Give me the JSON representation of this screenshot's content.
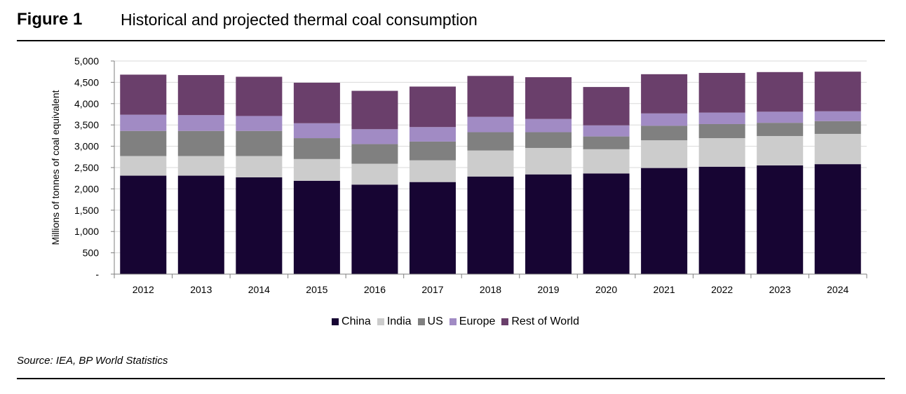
{
  "figure": {
    "number": "Figure 1",
    "title": "Historical and projected thermal coal consumption",
    "source": "Source: IEA, BP World Statistics"
  },
  "chart_data": {
    "type": "bar",
    "stacked": true,
    "categories": [
      "2012",
      "2013",
      "2014",
      "2015",
      "2016",
      "2017",
      "2018",
      "2019",
      "2020",
      "2021",
      "2022",
      "2023",
      "2024"
    ],
    "ylabel": "Millions of tonnes of coal equivalent",
    "ylim": [
      0,
      5000
    ],
    "yticks": [
      0,
      500,
      1000,
      1500,
      2000,
      2500,
      3000,
      3500,
      4000,
      4500,
      5000
    ],
    "ytick_labels": [
      "-",
      "500",
      "1,000",
      "1,500",
      "2,000",
      "2,500",
      "3,000",
      "3,500",
      "4,000",
      "4,500",
      "5,000"
    ],
    "grid": true,
    "legend_position": "bottom",
    "series": [
      {
        "name": "China",
        "color": "#170533",
        "values": [
          2310,
          2310,
          2270,
          2190,
          2100,
          2160,
          2290,
          2340,
          2360,
          2490,
          2520,
          2550,
          2580
        ]
      },
      {
        "name": "India",
        "color": "#cccccc",
        "values": [
          460,
          460,
          500,
          510,
          490,
          510,
          610,
          620,
          570,
          650,
          670,
          690,
          710
        ]
      },
      {
        "name": "US",
        "color": "#808080",
        "values": [
          590,
          590,
          590,
          490,
          460,
          440,
          430,
          370,
          300,
          340,
          330,
          310,
          300
        ]
      },
      {
        "name": "Europe",
        "color": "#a18bc4",
        "values": [
          380,
          370,
          350,
          350,
          350,
          340,
          360,
          310,
          260,
          290,
          270,
          260,
          230
        ]
      },
      {
        "name": "Rest of World",
        "color": "#6a3f6b",
        "values": [
          940,
          940,
          920,
          950,
          900,
          950,
          960,
          980,
          900,
          920,
          930,
          930,
          930
        ]
      }
    ]
  }
}
